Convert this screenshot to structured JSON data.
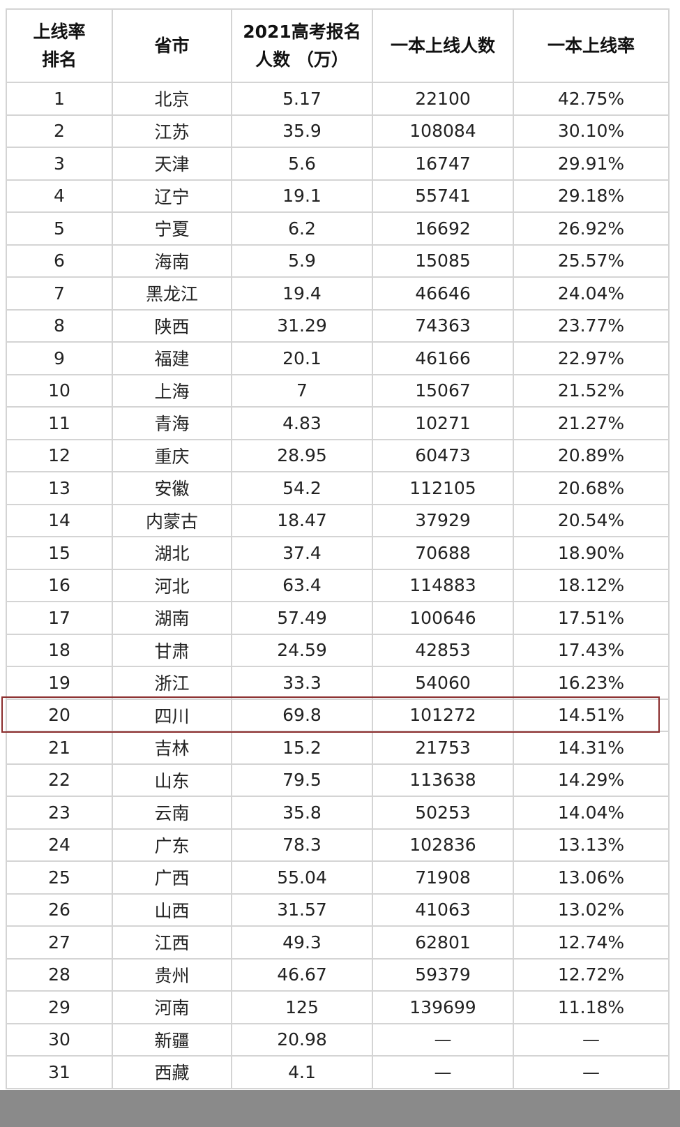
{
  "table": {
    "headers": [
      "上线率\n排名",
      "省市",
      "2021高考报名\n人数（万）",
      "一本上线人数",
      "一本上线率"
    ],
    "header_lines": [
      [
        "上线率",
        "排名"
      ],
      [
        "省市"
      ],
      [
        "2021高考报名",
        "人数 （万）"
      ],
      [
        "一本上线人数"
      ],
      [
        "一本上线率"
      ]
    ],
    "rows": [
      [
        "1",
        "北京",
        "5.17",
        "22100",
        "42.75%"
      ],
      [
        "2",
        "江苏",
        "35.9",
        "108084",
        "30.10%"
      ],
      [
        "3",
        "天津",
        "5.6",
        "16747",
        "29.91%"
      ],
      [
        "4",
        "辽宁",
        "19.1",
        "55741",
        "29.18%"
      ],
      [
        "5",
        "宁夏",
        "6.2",
        "16692",
        "26.92%"
      ],
      [
        "6",
        "海南",
        "5.9",
        "15085",
        "25.57%"
      ],
      [
        "7",
        "黑龙江",
        "19.4",
        "46646",
        "24.04%"
      ],
      [
        "8",
        "陕西",
        "31.29",
        "74363",
        "23.77%"
      ],
      [
        "9",
        "福建",
        "20.1",
        "46166",
        "22.97%"
      ],
      [
        "10",
        "上海",
        "7",
        "15067",
        "21.52%"
      ],
      [
        "11",
        "青海",
        "4.83",
        "10271",
        "21.27%"
      ],
      [
        "12",
        "重庆",
        "28.95",
        "60473",
        "20.89%"
      ],
      [
        "13",
        "安徽",
        "54.2",
        "112105",
        "20.68%"
      ],
      [
        "14",
        "内蒙古",
        "18.47",
        "37929",
        "20.54%"
      ],
      [
        "15",
        "湖北",
        "37.4",
        "70688",
        "18.90%"
      ],
      [
        "16",
        "河北",
        "63.4",
        "114883",
        "18.12%"
      ],
      [
        "17",
        "湖南",
        "57.49",
        "100646",
        "17.51%"
      ],
      [
        "18",
        "甘肃",
        "24.59",
        "42853",
        "17.43%"
      ],
      [
        "19",
        "浙江",
        "33.3",
        "54060",
        "16.23%"
      ],
      [
        "20",
        "四川",
        "69.8",
        "101272",
        "14.51%"
      ],
      [
        "21",
        "吉林",
        "15.2",
        "21753",
        "14.31%"
      ],
      [
        "22",
        "山东",
        "79.5",
        "113638",
        "14.29%"
      ],
      [
        "23",
        "云南",
        "35.8",
        "50253",
        "14.04%"
      ],
      [
        "24",
        "广东",
        "78.3",
        "102836",
        "13.13%"
      ],
      [
        "25",
        "广西",
        "55.04",
        "71908",
        "13.06%"
      ],
      [
        "26",
        "山西",
        "31.57",
        "41063",
        "13.02%"
      ],
      [
        "27",
        "江西",
        "49.3",
        "62801",
        "12.74%"
      ],
      [
        "28",
        "贵州",
        "46.67",
        "59379",
        "12.72%"
      ],
      [
        "29",
        "河南",
        "125",
        "139699",
        "11.18%"
      ],
      [
        "30",
        "新疆",
        "20.98",
        "—",
        "—"
      ],
      [
        "31",
        "西藏",
        "4.1",
        "—",
        "—"
      ]
    ],
    "highlighted_row": "20",
    "highlight_color": "#8b2e2e",
    "border_color": "#d4d4d4"
  }
}
